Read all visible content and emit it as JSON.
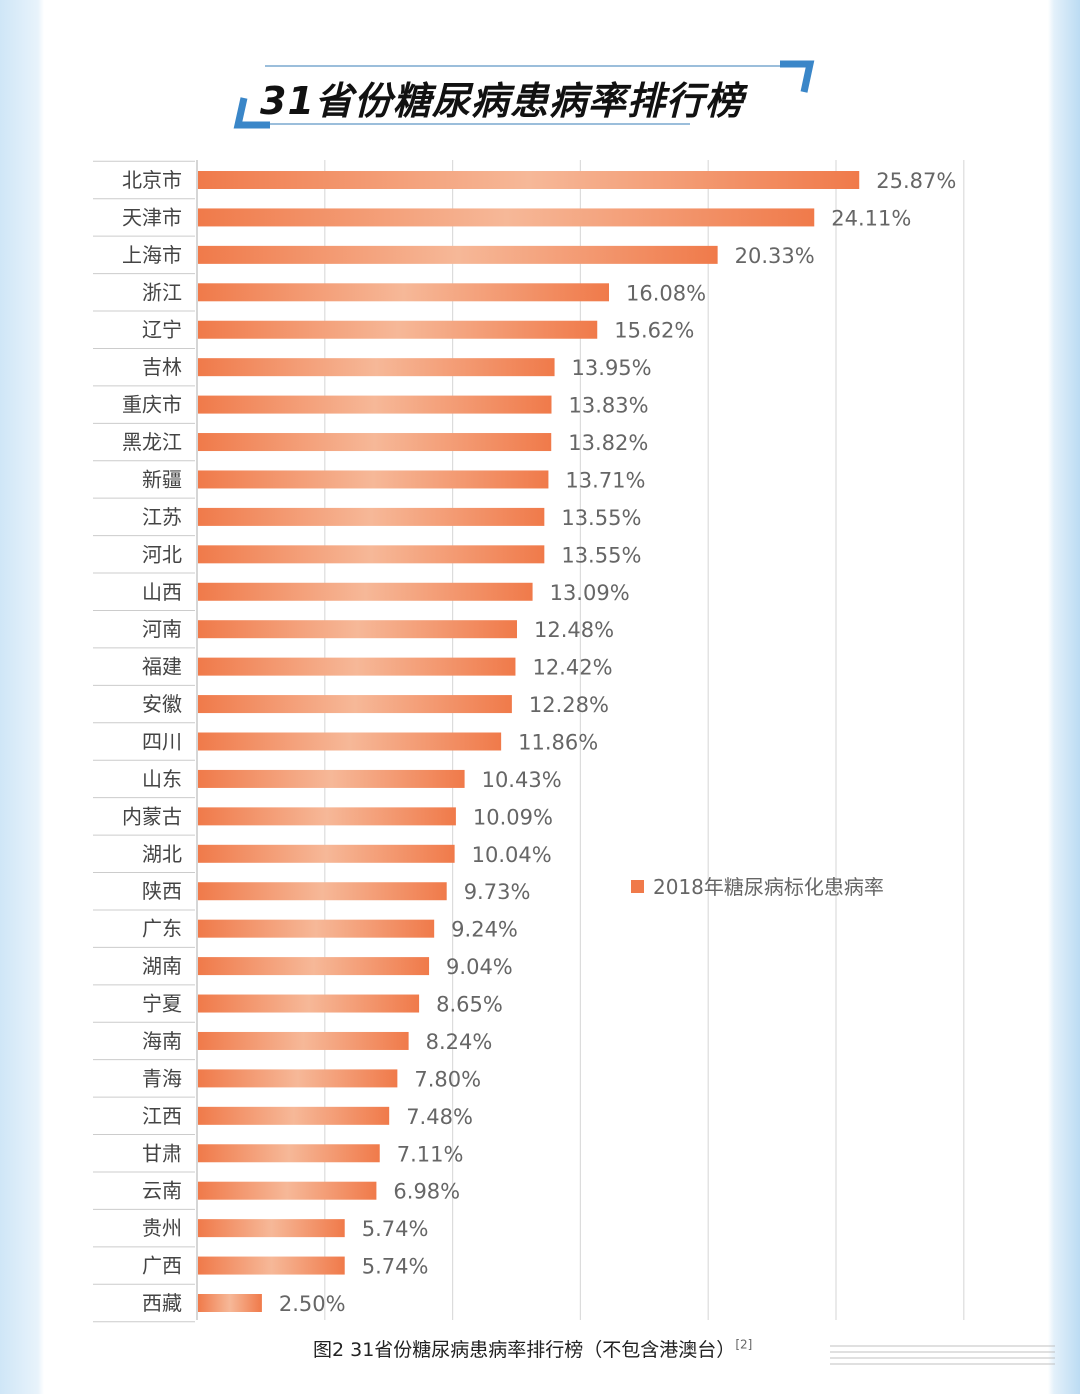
{
  "title": "31省份糖尿病患病率排行榜",
  "caption": "图2 31省份糖尿病患病率排行榜（不包含港澳台）",
  "caption_ref": "[2]",
  "colors": {
    "bar": "#f07a4a",
    "bar_highlight": "#f6b898",
    "accent_blue": "#3a86c8"
  },
  "chart_data": {
    "type": "bar",
    "orientation": "horizontal",
    "categories": [
      "北京市",
      "天津市",
      "上海市",
      "浙江",
      "辽宁",
      "吉林",
      "重庆市",
      "黑龙江",
      "新疆",
      "江苏",
      "河北",
      "山西",
      "河南",
      "福建",
      "安徽",
      "四川",
      "山东",
      "内蒙古",
      "湖北",
      "陕西",
      "广东",
      "湖南",
      "宁夏",
      "海南",
      "青海",
      "江西",
      "甘肃",
      "云南",
      "贵州",
      "广西",
      "西藏"
    ],
    "series": [
      {
        "name": "2018年糖尿病标化患病率",
        "values": [
          25.87,
          24.11,
          20.33,
          16.08,
          15.62,
          13.95,
          13.83,
          13.82,
          13.71,
          13.55,
          13.55,
          13.09,
          12.48,
          12.42,
          12.28,
          11.86,
          10.43,
          10.09,
          10.04,
          9.73,
          9.24,
          9.04,
          8.65,
          8.24,
          7.8,
          7.48,
          7.11,
          6.98,
          5.74,
          5.74,
          2.5
        ],
        "labels": [
          "25.87%",
          "24.11%",
          "20.33%",
          "16.08%",
          "15.62%",
          "13.95%",
          "13.83%",
          "13.82%",
          "13.71%",
          "13.55%",
          "13.55%",
          "13.09%",
          "12.48%",
          "12.42%",
          "12.28%",
          "11.86%",
          "10.43%",
          "10.09%",
          "10.04%",
          "9.73%",
          "9.24%",
          "9.04%",
          "8.65%",
          "8.24%",
          "7.80%",
          "7.48%",
          "7.11%",
          "6.98%",
          "5.74%",
          "5.74%",
          "2.50%"
        ]
      }
    ],
    "xlim": [
      0,
      30
    ],
    "grid": true,
    "legend": "right",
    "xlabel": "",
    "ylabel": ""
  }
}
